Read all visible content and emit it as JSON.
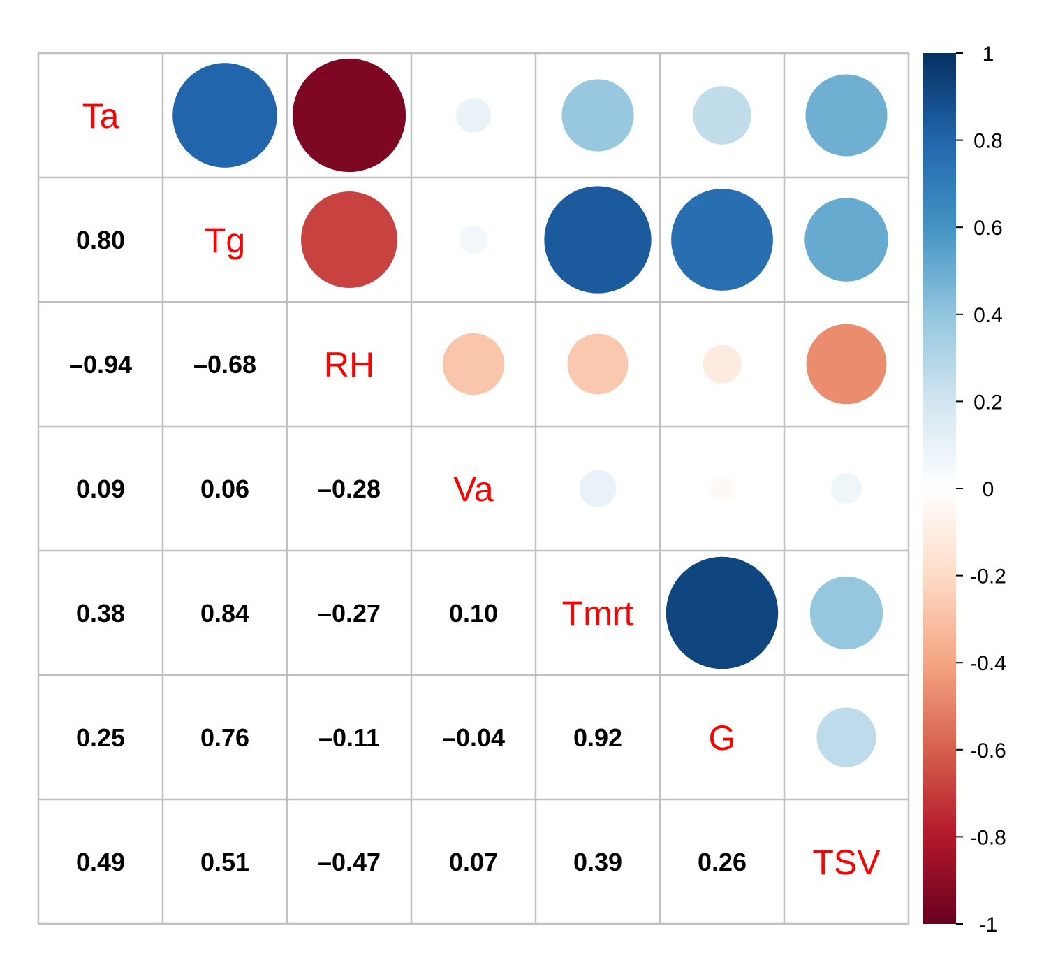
{
  "chart_data": {
    "type": "heatmap",
    "variables": [
      "Ta",
      "Tg",
      "RH",
      "Va",
      "Tmrt",
      "G",
      "TSV"
    ],
    "matrix": [
      [
        1,
        0.8,
        -0.94,
        0.09,
        0.38,
        0.25,
        0.49
      ],
      [
        0.8,
        1,
        -0.68,
        0.06,
        0.84,
        0.76,
        0.51
      ],
      [
        -0.94,
        -0.68,
        1,
        -0.28,
        -0.27,
        -0.11,
        -0.47
      ],
      [
        0.09,
        0.06,
        -0.28,
        1,
        0.1,
        -0.04,
        0.07
      ],
      [
        0.38,
        0.84,
        -0.27,
        0.1,
        1,
        0.92,
        0.39
      ],
      [
        0.25,
        0.76,
        -0.11,
        -0.04,
        0.92,
        1,
        0.26
      ],
      [
        0.49,
        0.51,
        -0.47,
        0.07,
        0.39,
        0.26,
        1
      ]
    ],
    "lower_labels": [
      [
        "0.80"
      ],
      [
        "–0.94",
        "–0.68"
      ],
      [
        "0.09",
        "0.06",
        "–0.28"
      ],
      [
        "0.38",
        "0.84",
        "–0.27",
        "0.10"
      ],
      [
        "0.25",
        "0.76",
        "–0.11",
        "–0.04",
        "0.92"
      ],
      [
        "0.49",
        "0.51",
        "–0.47",
        "0.07",
        "0.39",
        "0.26"
      ]
    ],
    "lower": "number",
    "upper": "circle",
    "diagonal_color": "#ff0000",
    "number_color": "#000000",
    "grid_color": "#c0c0c0",
    "colorbar": {
      "range": [
        -1,
        1
      ],
      "ticks": [
        "1",
        "0.8",
        "0.6",
        "0.4",
        "0.2",
        "0",
        "-0.2",
        "-0.4",
        "-0.6",
        "-0.8",
        "-1"
      ],
      "tick_values": [
        1,
        0.8,
        0.6,
        0.4,
        0.2,
        0,
        -0.2,
        -0.4,
        -0.6,
        -0.8,
        -1
      ],
      "palette": [
        "#67001F",
        "#B2182B",
        "#D6604D",
        "#F4A582",
        "#FDDBC7",
        "#FFFFFF",
        "#D1E5F0",
        "#92C5DE",
        "#4393C3",
        "#2166AC",
        "#053061"
      ],
      "legend_position": "right"
    }
  }
}
